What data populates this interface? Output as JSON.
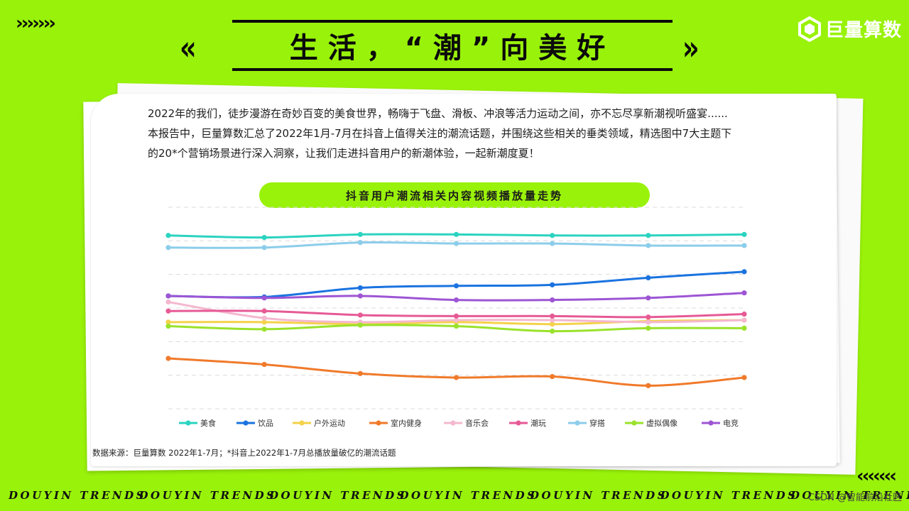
{
  "header": {
    "chevrons_top": "›››››››",
    "title_left": "‹‹",
    "title": "生活，“潮”向美好",
    "title_right": "››",
    "brand": "巨量算数"
  },
  "intro": {
    "line1": "2022年的我们，徒步漫游在奇妙百变的美食世界，畅嗨于飞盘、滑板、冲浪等活力运动之间，亦不忘尽享新潮视听盛宴......",
    "line2": "本报告中，巨量算数汇总了2022年1月-7月在抖音上值得关注的潮流话题，并围绕这些相关的垂类领域，精选图中7大主题下",
    "line3": "的20*个营销场景进行深入洞察，让我们走进抖音用户的新潮体验，一起新潮度夏！"
  },
  "source": "数据来源：巨量算数 2022年1-7月；*抖音上2022年1-7月总播放量破亿的潮流话题",
  "footer": {
    "text": "DOUYIN TRENDS",
    "chevrons": "‹‹‹‹‹‹‹",
    "watermark": "CSDN @智能前沿社区"
  },
  "chart_data": {
    "type": "line",
    "title": "抖音用户潮流相关内容视频播放量走势",
    "x": [
      1,
      2,
      3,
      4,
      5,
      6,
      7
    ],
    "xlabel": "",
    "ylabel": "",
    "ylim": [
      0,
      10
    ],
    "grid": true,
    "legend_position": "bottom",
    "series": [
      {
        "name": "美食",
        "color": "#2bd3c0",
        "values": [
          8.6,
          8.5,
          8.65,
          8.65,
          8.6,
          8.6,
          8.65
        ]
      },
      {
        "name": "饮品",
        "color": "#1a73e0",
        "values": [
          5.6,
          5.55,
          6.0,
          6.1,
          6.15,
          6.5,
          6.8
        ]
      },
      {
        "name": "户外运动",
        "color": "#f4d24a",
        "values": [
          4.3,
          4.3,
          4.2,
          4.3,
          4.2,
          4.35,
          4.4
        ]
      },
      {
        "name": "室内健身",
        "color": "#f07a2a",
        "values": [
          2.5,
          2.2,
          1.75,
          1.55,
          1.6,
          1.15,
          1.55
        ]
      },
      {
        "name": "音乐会",
        "color": "#f4b8cf",
        "values": [
          5.3,
          4.5,
          4.3,
          4.4,
          4.4,
          4.3,
          4.4
        ]
      },
      {
        "name": "潮玩",
        "color": "#e65a95",
        "values": [
          4.85,
          4.85,
          4.65,
          4.6,
          4.6,
          4.55,
          4.7
        ]
      },
      {
        "name": "穿搭",
        "color": "#8ccdea",
        "values": [
          8.0,
          8.0,
          8.25,
          8.2,
          8.2,
          8.1,
          8.1
        ]
      },
      {
        "name": "虚拟偶像",
        "color": "#9ae22b",
        "values": [
          4.1,
          3.95,
          4.15,
          4.1,
          3.85,
          4.0,
          4.0
        ]
      },
      {
        "name": "电竞",
        "color": "#9d55d4",
        "values": [
          5.6,
          5.5,
          5.6,
          5.4,
          5.4,
          5.5,
          5.75
        ]
      }
    ]
  }
}
